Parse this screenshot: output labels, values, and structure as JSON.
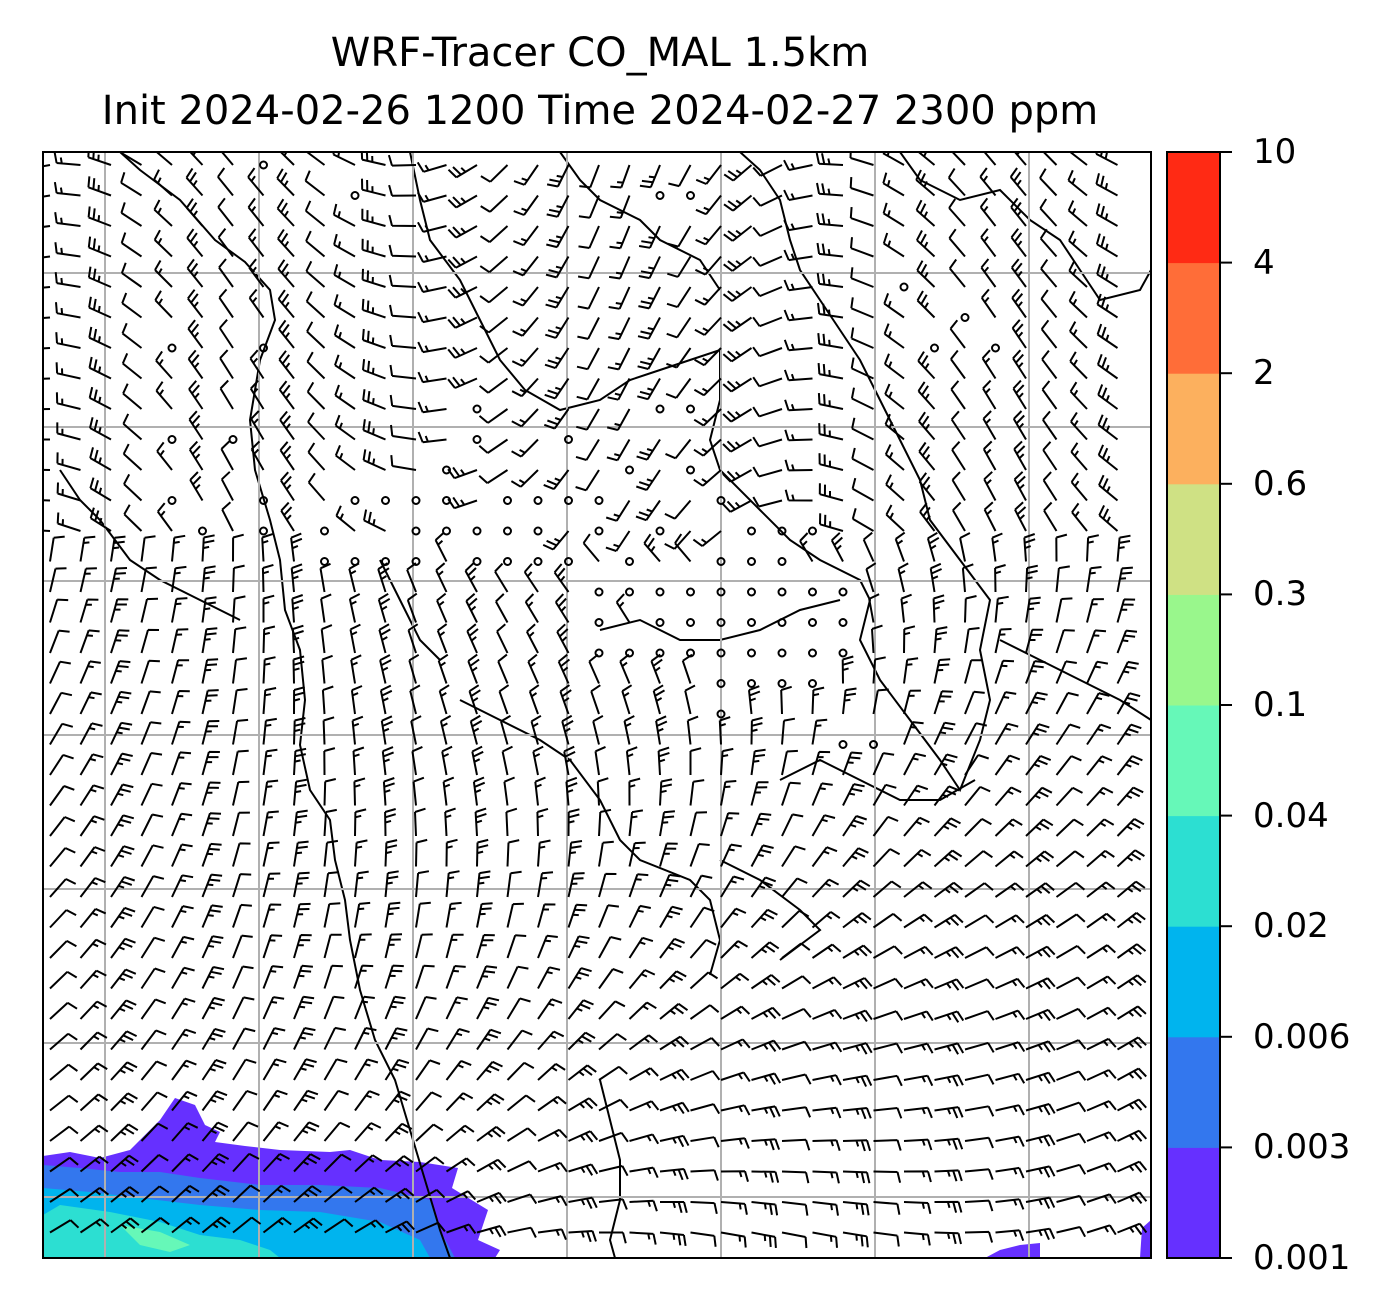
{
  "title": {
    "line1": "WRF-Tracer CO_MAL 1.5km",
    "line2": "Init 2024-02-26 1200 Time 2024-02-27 2300 ppm"
  },
  "colorbar": {
    "levels": [
      {
        "label": "0.001",
        "color": "#6630ff"
      },
      {
        "label": "0.003",
        "color": "#3377ee"
      },
      {
        "label": "0.006",
        "color": "#00b4ee"
      },
      {
        "label": "0.02",
        "color": "#2cdfd2"
      },
      {
        "label": "0.04",
        "color": "#66f8b8"
      },
      {
        "label": "0.1",
        "color": "#99f78c"
      },
      {
        "label": "0.3",
        "color": "#cfe184"
      },
      {
        "label": "0.6",
        "color": "#fcb05e"
      },
      {
        "label": "2",
        "color": "#ff6d38"
      },
      {
        "label": "4",
        "color": "#ff2a14"
      },
      {
        "label": "10",
        "color": null
      }
    ]
  },
  "map": {
    "gridline_color": "#b0b0b0",
    "barb_color": "#000000",
    "coastline_color": "#000000"
  }
}
